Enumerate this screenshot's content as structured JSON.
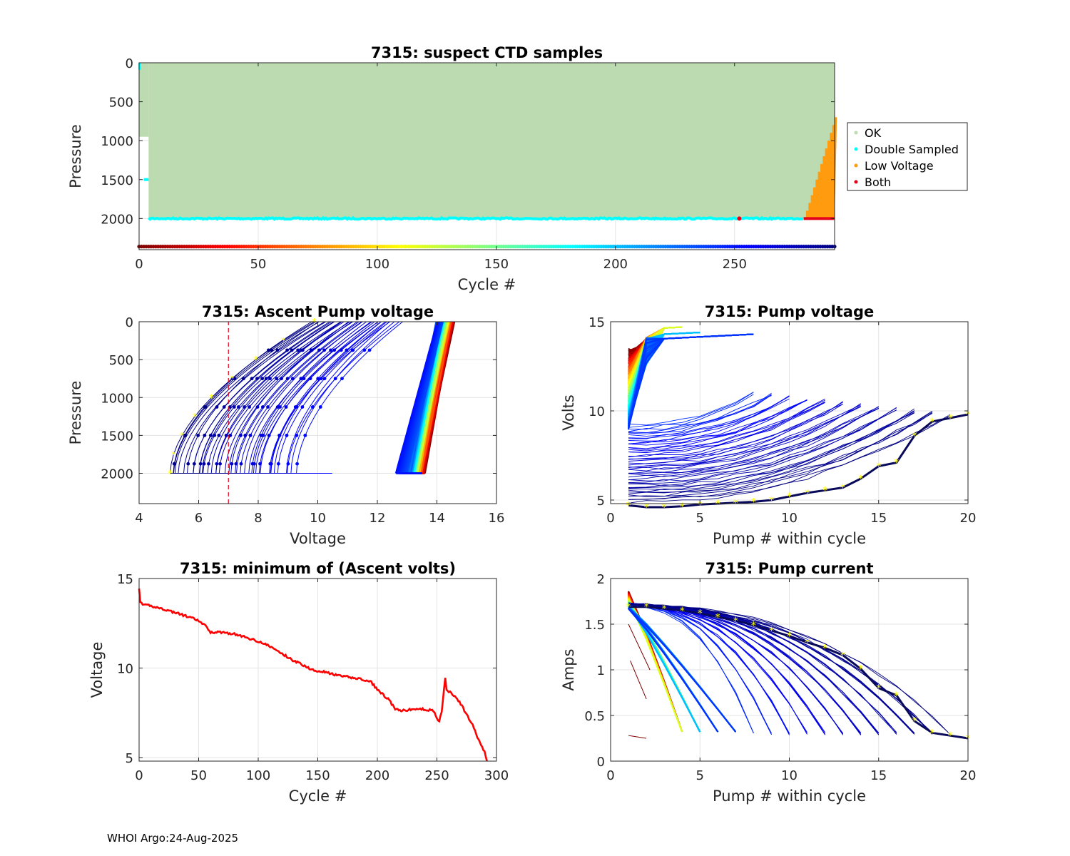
{
  "footer": "WHOI Argo:24-Aug-2025",
  "colors": {
    "ok": "#bcdbb0",
    "double": "#00ffff",
    "low": "#ff9b0f",
    "both": "#e3001a",
    "dash": "#e3001a",
    "marker": "#ffff00"
  },
  "chart_data": [
    {
      "id": "samples",
      "type": "scatter",
      "title": "7315: suspect CTD samples",
      "xlabel": "Cycle #",
      "ylabel": "Pressure",
      "xlim": [
        0,
        292
      ],
      "ylim": [
        2400,
        0
      ],
      "xticks": [
        0,
        50,
        100,
        150,
        200,
        250
      ],
      "yticks": [
        0,
        500,
        1000,
        1500,
        2000
      ],
      "legend": [
        "OK",
        "Double Sampled",
        "Low Voltage",
        "Both"
      ],
      "legend_position": "outside-right",
      "ok_band": {
        "from_cycle": 4,
        "to_cycle": 292,
        "top": 0,
        "bottom": 2000
      },
      "double_sampled": {
        "cycles": [
          0,
          292
        ],
        "pressure": 2000,
        "early_cycles": [
          [
            0,
            1500
          ]
        ]
      },
      "low_voltage": {
        "cycles": [
          280,
          292
        ],
        "top_pressure": [
          1900,
          700
        ]
      },
      "both": {
        "cycles": [
          279,
          292
        ],
        "pressure": 2000
      }
    },
    {
      "id": "ascent",
      "type": "line",
      "title": "7315: Ascent Pump voltage",
      "xlabel": "Voltage",
      "ylabel": "Pressure",
      "xlim": [
        4,
        16
      ],
      "ylim": [
        2400,
        0
      ],
      "xticks": [
        4,
        6,
        8,
        10,
        12,
        14,
        16
      ],
      "yticks": [
        0,
        500,
        1000,
        1500,
        2000
      ],
      "threshold_voltage": 7,
      "note": "Pump voltage vs pressure per cycle (early cycles red ~13.5-14.5 V, late cycles dark blue ~4.7-11 V)"
    },
    {
      "id": "pumpvolt",
      "type": "line",
      "title": "7315: Pump voltage",
      "xlabel": "Pump # within cycle",
      "ylabel": "Volts",
      "xlim": [
        0,
        20
      ],
      "ylim": [
        4.8,
        15
      ],
      "xticks": [
        0,
        5,
        10,
        15,
        20
      ],
      "yticks": [
        5,
        10,
        15
      ],
      "last_cycle": {
        "x": [
          1,
          2,
          3,
          4,
          5,
          6,
          7,
          8,
          9,
          10,
          11,
          12,
          13,
          14,
          15,
          16,
          17,
          18,
          19,
          20
        ],
        "y": [
          4.7,
          4.6,
          4.6,
          4.65,
          4.75,
          4.8,
          4.85,
          4.9,
          5.0,
          5.2,
          5.4,
          5.55,
          5.7,
          6.2,
          6.9,
          7.1,
          8.6,
          9.4,
          9.6,
          9.8
        ]
      }
    },
    {
      "id": "minvolt",
      "type": "line",
      "title": "7315: minimum of (Ascent volts)",
      "xlabel": "Cycle #",
      "ylabel": "Voltage",
      "xlim": [
        0,
        300
      ],
      "ylim": [
        4.8,
        15
      ],
      "xticks": [
        0,
        50,
        100,
        150,
        200,
        250,
        300
      ],
      "yticks": [
        5,
        10,
        15
      ],
      "series": [
        {
          "name": "min ascent voltage",
          "x": [
            0,
            1,
            3,
            8,
            20,
            35,
            48,
            55,
            60,
            70,
            80,
            90,
            100,
            110,
            120,
            130,
            140,
            145,
            155,
            165,
            175,
            185,
            195,
            200,
            205,
            210,
            215,
            220,
            230,
            240,
            247,
            252,
            254,
            256,
            257,
            258,
            260,
            265,
            270,
            275,
            280,
            285,
            290,
            292
          ],
          "y": [
            14.5,
            13.7,
            13.5,
            13.5,
            13.3,
            13.0,
            12.7,
            12.4,
            12.0,
            12.0,
            11.9,
            11.7,
            11.5,
            11.2,
            10.8,
            10.4,
            10.1,
            9.9,
            9.8,
            9.6,
            9.5,
            9.4,
            9.2,
            8.8,
            8.5,
            8.2,
            7.7,
            7.6,
            7.7,
            7.7,
            7.6,
            7.0,
            7.6,
            8.8,
            9.4,
            8.8,
            8.7,
            8.4,
            8.0,
            7.4,
            6.8,
            6.0,
            5.3,
            4.8
          ]
        }
      ]
    },
    {
      "id": "current",
      "type": "line",
      "title": "7315: Pump current",
      "xlabel": "Pump # within cycle",
      "ylabel": "Amps",
      "xlim": [
        0,
        20
      ],
      "ylim": [
        0,
        2
      ],
      "xticks": [
        0,
        5,
        10,
        15,
        20
      ],
      "yticks": [
        0,
        0.5,
        1,
        1.5,
        2
      ],
      "last_cycle": {
        "x": [
          1,
          2,
          3,
          4,
          5,
          6,
          7,
          8,
          9,
          10,
          11,
          12,
          13,
          14,
          15,
          16,
          17,
          18,
          19,
          20
        ],
        "y": [
          1.69,
          1.69,
          1.67,
          1.65,
          1.62,
          1.58,
          1.54,
          1.49,
          1.43,
          1.37,
          1.3,
          1.24,
          1.16,
          1.01,
          0.8,
          0.72,
          0.44,
          0.31,
          0.28,
          0.25
        ]
      }
    }
  ]
}
